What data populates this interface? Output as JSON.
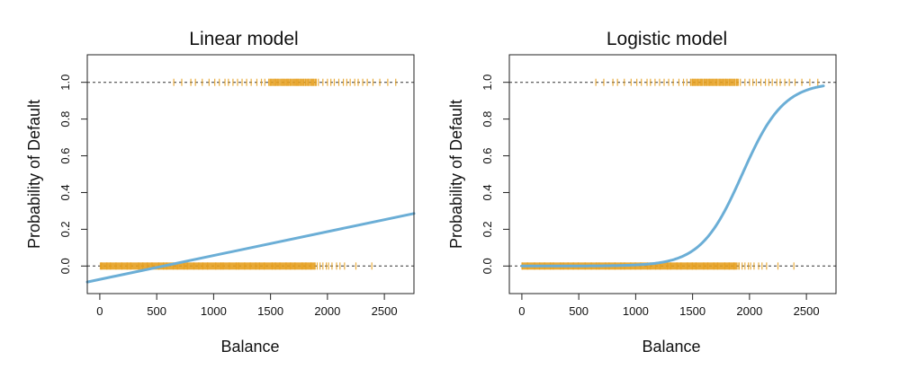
{
  "chart_data": [
    {
      "type": "scatter",
      "title": "Linear model",
      "xlabel": "Balance",
      "ylabel": "Probability of Default",
      "xlim": [
        -110,
        2760
      ],
      "ylim": [
        -0.15,
        1.15
      ],
      "xticks": [
        0,
        500,
        1000,
        1500,
        2000,
        2500
      ],
      "yticks": [
        0.0,
        0.2,
        0.4,
        0.6,
        0.8,
        1.0
      ],
      "ytick_labels": [
        "0.0",
        "0.2",
        "0.4",
        "0.6",
        "0.8",
        "1.0"
      ],
      "reference_lines_y": [
        0,
        1
      ],
      "fit": {
        "kind": "linear",
        "x": [
          -110,
          2760
        ],
        "y": [
          -0.087,
          0.286
        ],
        "color": "#6baed6"
      },
      "points": {
        "color": "#e6a020",
        "band_y0": [
          0,
          1890
        ],
        "sparse_y0": [
          1910,
          1935,
          1960,
          1990,
          2010,
          2040,
          2080,
          2110,
          2150,
          2250,
          2390
        ],
        "dense_y1": [
          1480,
          1900
        ],
        "sparse_y1": [
          650,
          720,
          800,
          840,
          900,
          960,
          1010,
          1050,
          1100,
          1130,
          1170,
          1210,
          1250,
          1290,
          1330,
          1380,
          1420,
          1450,
          1920,
          1960,
          2000,
          2030,
          2060,
          2100,
          2140,
          2170,
          2200,
          2240,
          2270,
          2310,
          2350,
          2400,
          2460,
          2530,
          2600
        ]
      }
    },
    {
      "type": "scatter",
      "title": "Logistic model",
      "xlabel": "Balance",
      "ylabel": "Probability of Default",
      "xlim": [
        -110,
        2760
      ],
      "ylim": [
        -0.15,
        1.15
      ],
      "xticks": [
        0,
        500,
        1000,
        1500,
        2000,
        2500
      ],
      "yticks": [
        0.0,
        0.2,
        0.4,
        0.6,
        0.8,
        1.0
      ],
      "ytick_labels": [
        "0.0",
        "0.2",
        "0.4",
        "0.6",
        "0.8",
        "1.0"
      ],
      "reference_lines_y": [
        0,
        1
      ],
      "fit": {
        "kind": "logistic",
        "intercept": -10.65,
        "slope": 0.0055,
        "x_range": [
          0,
          2650
        ],
        "color": "#6baed6"
      },
      "points": {
        "color": "#e6a020",
        "band_y0": [
          0,
          1890
        ],
        "sparse_y0": [
          1910,
          1935,
          1960,
          1990,
          2010,
          2040,
          2080,
          2110,
          2150,
          2250,
          2390
        ],
        "dense_y1": [
          1480,
          1900
        ],
        "sparse_y1": [
          650,
          720,
          800,
          840,
          900,
          960,
          1010,
          1050,
          1100,
          1130,
          1170,
          1210,
          1250,
          1290,
          1330,
          1380,
          1420,
          1450,
          1920,
          1960,
          2000,
          2030,
          2060,
          2100,
          2140,
          2170,
          2200,
          2240,
          2270,
          2310,
          2350,
          2400,
          2460,
          2530,
          2600
        ]
      }
    }
  ]
}
